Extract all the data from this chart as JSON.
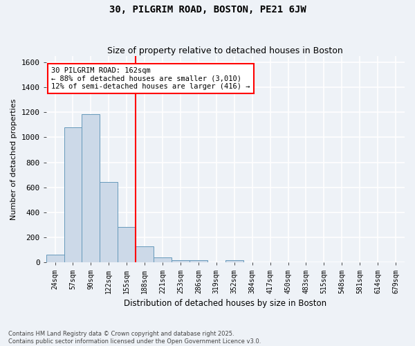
{
  "title1": "30, PILGRIM ROAD, BOSTON, PE21 6JW",
  "title2": "Size of property relative to detached houses in Boston",
  "xlabel": "Distribution of detached houses by size in Boston",
  "ylabel": "Number of detached properties",
  "bin_labels": [
    "24sqm",
    "57sqm",
    "90sqm",
    "122sqm",
    "155sqm",
    "188sqm",
    "221sqm",
    "253sqm",
    "286sqm",
    "319sqm",
    "352sqm",
    "384sqm",
    "417sqm",
    "450sqm",
    "483sqm",
    "515sqm",
    "548sqm",
    "581sqm",
    "614sqm",
    "679sqm"
  ],
  "bar_heights": [
    65,
    1080,
    1185,
    645,
    285,
    130,
    40,
    20,
    20,
    0,
    20,
    0,
    0,
    0,
    0,
    0,
    0,
    0,
    0,
    0
  ],
  "bar_color": "#ccd9e8",
  "bar_edge_color": "#6699bb",
  "vline_color": "red",
  "ylim": [
    0,
    1650
  ],
  "yticks": [
    0,
    200,
    400,
    600,
    800,
    1000,
    1200,
    1400,
    1600
  ],
  "annotation_line1": "30 PILGRIM ROAD: 162sqm",
  "annotation_line2": "← 88% of detached houses are smaller (3,010)",
  "annotation_line3": "12% of semi-detached houses are larger (416) →",
  "annotation_box_color": "white",
  "annotation_box_edge": "red",
  "footer1": "Contains HM Land Registry data © Crown copyright and database right 2025.",
  "footer2": "Contains public sector information licensed under the Open Government Licence v3.0.",
  "bg_color": "#eef2f7",
  "grid_color": "white"
}
